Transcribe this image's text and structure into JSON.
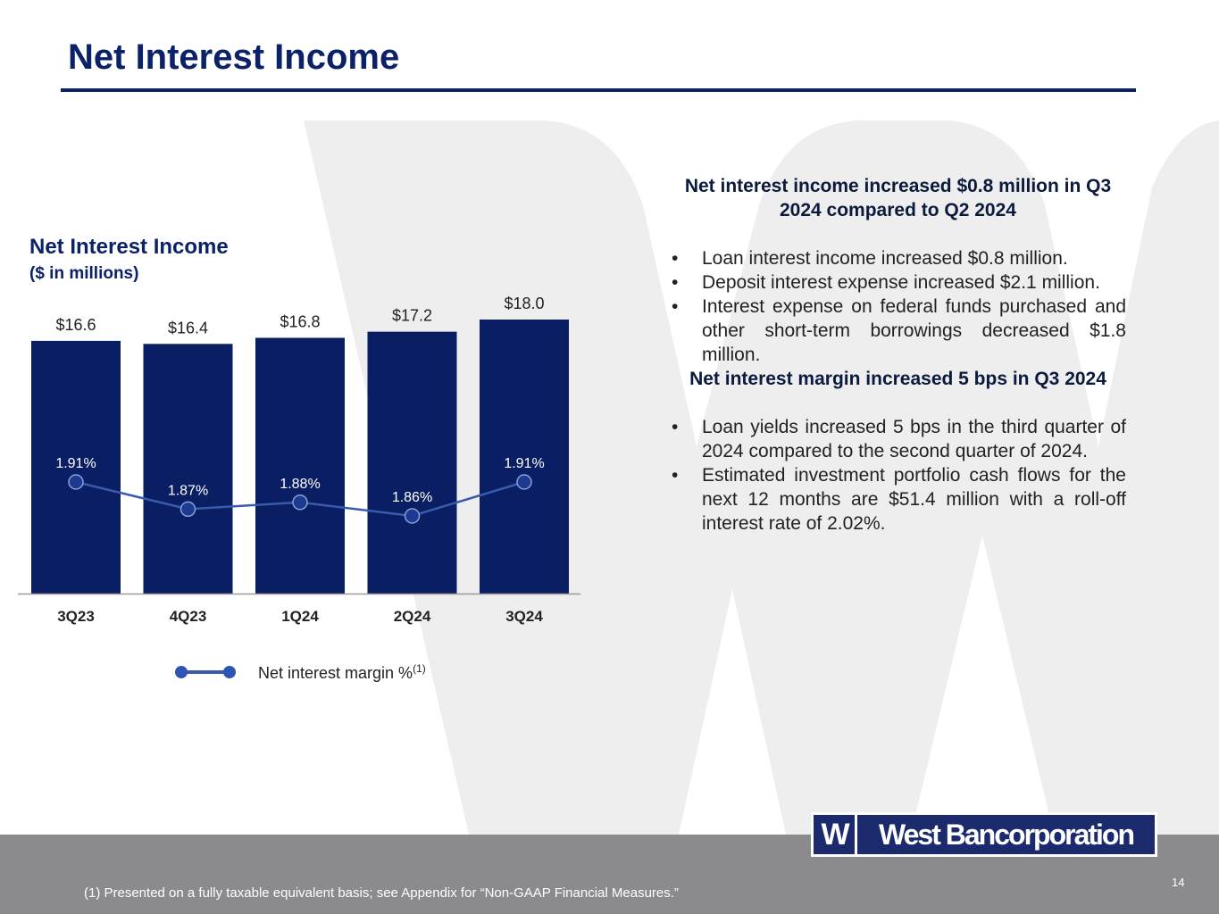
{
  "slide": {
    "title": "Net Interest Income",
    "page_number": "14",
    "footnote": "(1) Presented on a fully taxable equivalent basis; see Appendix for “Non-GAAP Financial Measures.”",
    "logo": {
      "mark": "W",
      "text": "West Bancorporation"
    }
  },
  "colors": {
    "title": "#0b2268",
    "bar": "#0a1f63",
    "line": "#3a5bab",
    "marker": "#1c3a8f",
    "footer": "#8b8b8e",
    "watermark": "#eeeeee"
  },
  "chart_data": {
    "type": "bar",
    "title": "Net Interest Income",
    "subtitle": "($ in millions)",
    "categories": [
      "3Q23",
      "4Q23",
      "1Q24",
      "2Q24",
      "3Q24"
    ],
    "series": [
      {
        "type": "bar",
        "values": [
          16.6,
          16.4,
          16.8,
          17.2,
          18.0
        ],
        "labels": [
          "$16.6",
          "$16.4",
          "$16.8",
          "$17.2",
          "$18.0"
        ]
      },
      {
        "type": "line",
        "name": "Net interest margin %",
        "name_superscript": "(1)",
        "values": [
          1.91,
          1.87,
          1.88,
          1.86,
          1.91
        ],
        "labels": [
          "1.91%",
          "1.87%",
          "1.88%",
          "1.86%",
          "1.91%"
        ]
      }
    ],
    "ylim": [
      0,
      18.0
    ],
    "grid": false,
    "legend": "bottom"
  },
  "panel": {
    "heading1": "Net interest income increased $0.8 million in Q3 2024 compared to Q2 2024",
    "bullets1": [
      "Loan interest income increased $0.8 million.",
      "Deposit interest expense increased $2.1 million.",
      "Interest expense on federal funds purchased and other short-term borrowings decreased $1.8 million."
    ],
    "heading2": "Net interest margin increased 5 bps in Q3 2024",
    "bullets2": [
      "Loan yields increased 5 bps in the third quarter of 2024 compared to the second quarter of 2024.",
      "Estimated investment portfolio cash flows for the next 12 months are $51.4 million with a roll-off interest rate of 2.02%."
    ]
  }
}
